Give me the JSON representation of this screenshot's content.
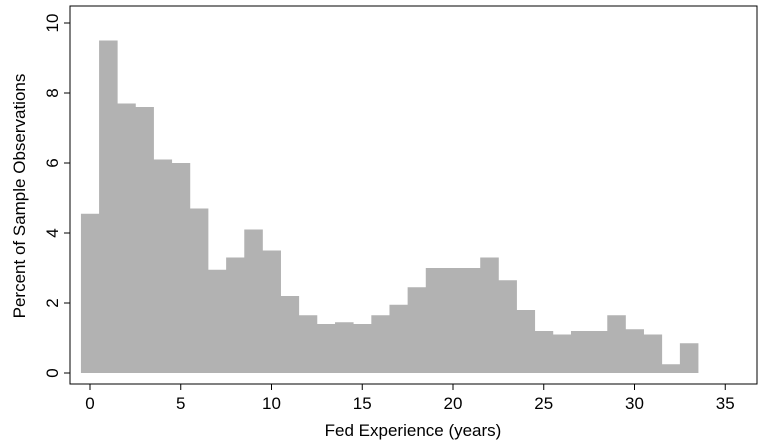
{
  "chart_data": {
    "type": "bar",
    "subtype": "histogram",
    "xlabel": "Fed Experience (years)",
    "ylabel": "Percent of Sample Observations",
    "xlim": [
      -1,
      35
    ],
    "ylim": [
      0,
      10
    ],
    "xticks": [
      "0",
      "5",
      "10",
      "15",
      "20",
      "25",
      "30",
      "35"
    ],
    "yticks": [
      "0",
      "2",
      "4",
      "6",
      "8",
      "10"
    ],
    "bin_width": 1,
    "first_bin_start": -0.5,
    "values": [
      4.55,
      9.5,
      7.7,
      7.6,
      6.1,
      6.0,
      4.7,
      2.95,
      3.3,
      4.1,
      3.5,
      2.2,
      1.65,
      1.4,
      1.45,
      1.4,
      1.65,
      1.95,
      2.45,
      3.0,
      3.0,
      3.0,
      3.3,
      2.65,
      1.8,
      1.2,
      1.1,
      1.2,
      1.2,
      1.65,
      1.25,
      1.1,
      0.25,
      0.85
    ],
    "bar_color": "#b2b2b2",
    "grid": false,
    "legend": "none"
  }
}
